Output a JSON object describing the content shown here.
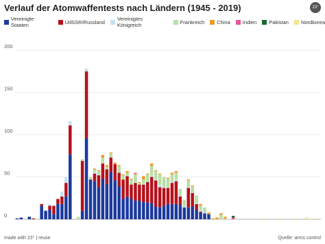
{
  "chart_data": {
    "type": "stacked-bar",
    "title": "Verlauf der Atomwaffentests nach Ländern (1945 - 2019)",
    "ylim": [
      0,
      200
    ],
    "yticks": [
      0,
      50,
      100,
      150,
      200
    ],
    "grid": true,
    "legend": "top",
    "series": [
      {
        "name": "Vereinigte Staaten",
        "color": "#1c3a9c",
        "values": [
          1,
          2,
          0,
          3,
          0,
          0,
          16,
          10,
          11,
          6,
          18,
          18,
          27,
          77,
          0,
          0,
          10,
          96,
          47,
          45,
          38,
          48,
          42,
          56,
          46,
          39,
          24,
          27,
          24,
          22,
          22,
          20,
          20,
          19,
          15,
          14,
          16,
          18,
          18,
          18,
          17,
          14,
          14,
          15,
          11,
          8,
          7,
          6,
          0,
          0,
          0,
          0,
          0,
          0,
          0,
          0,
          0,
          0,
          0,
          0,
          0,
          0,
          0,
          0,
          0,
          0,
          0,
          0,
          0,
          0,
          0,
          0,
          0,
          0,
          0
        ]
      },
      {
        "name": "UdSSR/Russland",
        "color": "#b5121b",
        "values": [
          0,
          0,
          0,
          0,
          1,
          0,
          2,
          0,
          5,
          10,
          6,
          9,
          16,
          34,
          0,
          0,
          59,
          79,
          0,
          9,
          14,
          18,
          17,
          17,
          19,
          16,
          23,
          24,
          17,
          21,
          19,
          21,
          24,
          31,
          31,
          24,
          21,
          19,
          25,
          27,
          10,
          0,
          23,
          16,
          7,
          1,
          0,
          0,
          0,
          0,
          0,
          0,
          0,
          0,
          0,
          0,
          0,
          0,
          0,
          0,
          0,
          0,
          0,
          0,
          0,
          0,
          0,
          0,
          0,
          0,
          0,
          0,
          0,
          0,
          0
        ]
      },
      {
        "name": "Vereinigtes Königreich",
        "color": "#c4e1f4",
        "values": [
          0,
          0,
          0,
          0,
          0,
          0,
          0,
          1,
          2,
          0,
          0,
          6,
          7,
          5,
          0,
          0,
          0,
          2,
          0,
          2,
          1,
          0,
          0,
          0,
          0,
          0,
          0,
          0,
          0,
          1,
          0,
          1,
          0,
          2,
          1,
          3,
          1,
          1,
          1,
          2,
          1,
          1,
          1,
          0,
          1,
          1,
          1,
          0,
          0,
          0,
          0,
          0,
          0,
          0,
          0,
          0,
          0,
          0,
          0,
          0,
          0,
          0,
          0,
          0,
          0,
          0,
          0,
          0,
          0,
          0,
          0,
          0,
          0,
          0,
          0
        ]
      },
      {
        "name": "Frankreich",
        "color": "#b8dfa4",
        "values": [
          0,
          0,
          0,
          0,
          0,
          0,
          0,
          0,
          0,
          0,
          0,
          0,
          0,
          0,
          0,
          3,
          2,
          1,
          3,
          3,
          4,
          7,
          3,
          5,
          0,
          8,
          5,
          4,
          6,
          9,
          2,
          5,
          9,
          11,
          10,
          12,
          12,
          10,
          9,
          8,
          8,
          8,
          8,
          8,
          9,
          6,
          6,
          0,
          0,
          0,
          5,
          1,
          0,
          0,
          0,
          0,
          0,
          0,
          0,
          0,
          0,
          0,
          0,
          0,
          0,
          0,
          0,
          0,
          0,
          0,
          0,
          0,
          0,
          0,
          0
        ]
      },
      {
        "name": "China",
        "color": "#f09a2a",
        "values": [
          0,
          0,
          0,
          0,
          0,
          0,
          0,
          0,
          0,
          0,
          0,
          0,
          0,
          0,
          0,
          0,
          0,
          0,
          0,
          1,
          1,
          3,
          2,
          1,
          2,
          1,
          1,
          2,
          1,
          1,
          1,
          4,
          1,
          3,
          1,
          1,
          0,
          1,
          2,
          2,
          0,
          0,
          1,
          1,
          0,
          2,
          0,
          2,
          1,
          2,
          2,
          2,
          0,
          0,
          0,
          0,
          0,
          0,
          0,
          0,
          0,
          0,
          0,
          0,
          0,
          0,
          0,
          0,
          0,
          0,
          0,
          0,
          0,
          0,
          0
        ]
      },
      {
        "name": "Indien",
        "color": "#e8559a",
        "values": [
          0,
          0,
          0,
          0,
          0,
          0,
          0,
          0,
          0,
          0,
          0,
          0,
          0,
          0,
          0,
          0,
          0,
          0,
          0,
          0,
          0,
          0,
          0,
          0,
          0,
          0,
          0,
          0,
          0,
          1,
          0,
          0,
          0,
          0,
          0,
          0,
          0,
          0,
          0,
          0,
          0,
          0,
          0,
          0,
          0,
          0,
          0,
          0,
          0,
          0,
          0,
          0,
          0,
          2,
          0,
          0,
          0,
          0,
          0,
          0,
          0,
          0,
          0,
          0,
          0,
          0,
          0,
          0,
          0,
          0,
          0,
          0,
          0,
          0,
          0
        ]
      },
      {
        "name": "Pakistan",
        "color": "#1a6b2c",
        "values": [
          0,
          0,
          0,
          0,
          0,
          0,
          0,
          0,
          0,
          0,
          0,
          0,
          0,
          0,
          0,
          0,
          0,
          0,
          0,
          0,
          0,
          0,
          0,
          0,
          0,
          0,
          0,
          0,
          0,
          0,
          0,
          0,
          0,
          0,
          0,
          0,
          0,
          0,
          0,
          0,
          0,
          0,
          0,
          0,
          0,
          0,
          0,
          0,
          0,
          0,
          0,
          0,
          0,
          2,
          0,
          0,
          0,
          0,
          0,
          0,
          0,
          0,
          0,
          0,
          0,
          0,
          0,
          0,
          0,
          0,
          0,
          0,
          0,
          0,
          0
        ]
      },
      {
        "name": "Nordkorea",
        "color": "#f3e58a",
        "values": [
          0,
          0,
          0,
          0,
          0,
          0,
          0,
          0,
          0,
          0,
          0,
          0,
          0,
          0,
          0,
          0,
          0,
          0,
          0,
          0,
          0,
          0,
          0,
          0,
          0,
          0,
          0,
          0,
          0,
          0,
          0,
          0,
          0,
          0,
          0,
          0,
          0,
          0,
          0,
          0,
          0,
          0,
          0,
          0,
          0,
          0,
          0,
          0,
          0,
          0,
          0,
          0,
          0,
          0,
          0,
          0,
          0,
          0,
          0,
          0,
          0,
          1,
          0,
          0,
          1,
          0,
          0,
          0,
          1,
          0,
          0,
          2,
          1,
          0,
          0
        ]
      }
    ]
  },
  "footer": {
    "left": "made with 23° | reuse",
    "right": "Quelle: arms control",
    "logo": "23°"
  }
}
